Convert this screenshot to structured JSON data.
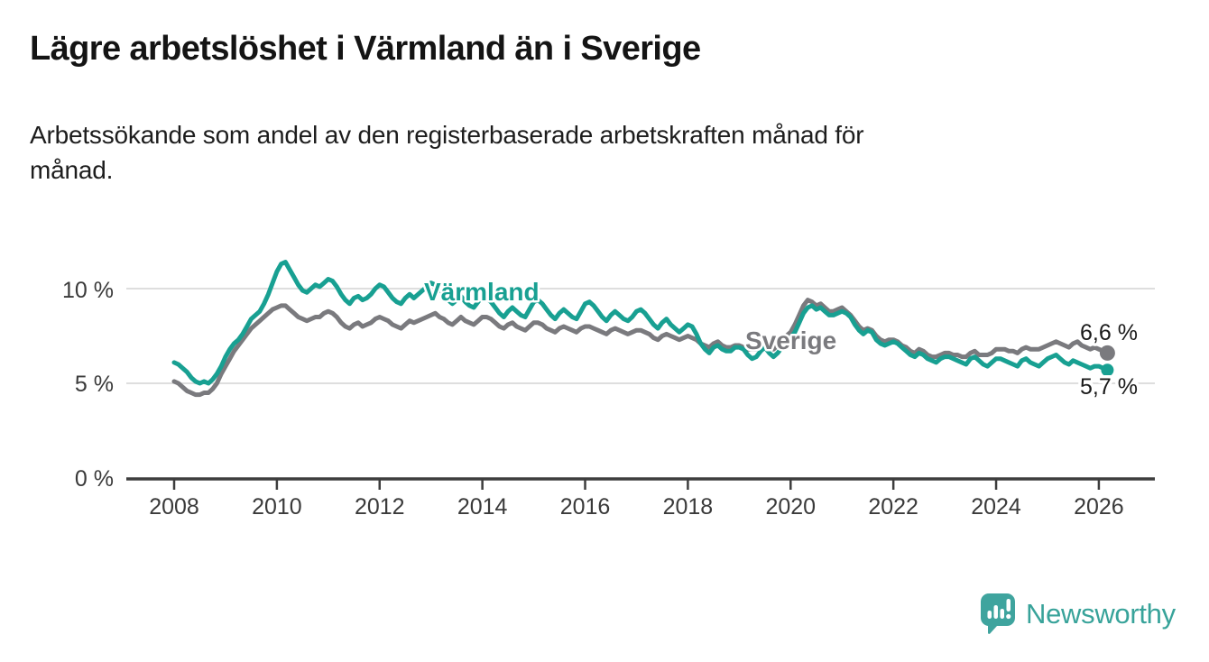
{
  "header": {
    "title": "Lägre arbetslöshet i Värmland än i Sverige",
    "subtitle": "Arbetssökande som andel av den registerbaserade arbetskraften månad för\nmånad."
  },
  "footer": {
    "brand": "Newsworthy",
    "logo_icon": "bar-chart-speech-bubble",
    "brand_color": "#38a39a"
  },
  "colors": {
    "varmland": "#18a092",
    "sverige": "#7a7a7e",
    "grid": "#dedede",
    "axis": "#3d3d3d",
    "tick_label": "#3a3a3a",
    "end_label": "#1a1a1a"
  },
  "chart_data": {
    "type": "line",
    "title": "Lägre arbetslöshet i Värmland än i Sverige",
    "subtitle": "Arbetssökande som andel av den registerbaserade arbetskraften månad för månad.",
    "unit": "%",
    "x_start_year": 2008,
    "x_start_month": 1,
    "x_interval": "monthly",
    "x_tick_years": [
      2008,
      2010,
      2012,
      2014,
      2016,
      2018,
      2020,
      2022,
      2024,
      2026
    ],
    "y_tick_labels": [
      "0 %",
      "5 %",
      "10 %"
    ],
    "y_tick_values": [
      0,
      5,
      10
    ],
    "ylim": [
      0,
      12.8
    ],
    "grid": "horizontal",
    "legend_position": "inline-labels",
    "series": [
      {
        "name": "Sverige",
        "color": "#7a7a7e",
        "end_label": "6,6 %",
        "end_value": 6.6,
        "values": [
          5.1,
          5.0,
          4.8,
          4.6,
          4.5,
          4.4,
          4.4,
          4.5,
          4.5,
          4.7,
          5.0,
          5.5,
          5.9,
          6.3,
          6.7,
          7.0,
          7.3,
          7.6,
          7.9,
          8.1,
          8.3,
          8.5,
          8.7,
          8.9,
          9.0,
          9.1,
          9.1,
          8.9,
          8.7,
          8.5,
          8.4,
          8.3,
          8.4,
          8.5,
          8.5,
          8.7,
          8.8,
          8.7,
          8.5,
          8.2,
          8.0,
          7.9,
          8.1,
          8.2,
          8.0,
          8.1,
          8.2,
          8.4,
          8.5,
          8.4,
          8.3,
          8.1,
          8.0,
          7.9,
          8.1,
          8.3,
          8.2,
          8.3,
          8.4,
          8.5,
          8.6,
          8.7,
          8.5,
          8.4,
          8.2,
          8.1,
          8.3,
          8.5,
          8.3,
          8.2,
          8.1,
          8.3,
          8.5,
          8.5,
          8.4,
          8.2,
          8.0,
          7.9,
          8.1,
          8.2,
          8.0,
          7.9,
          7.8,
          8.0,
          8.2,
          8.2,
          8.1,
          7.9,
          7.8,
          7.7,
          7.9,
          8.0,
          7.9,
          7.8,
          7.7,
          7.9,
          8.0,
          8.0,
          7.9,
          7.8,
          7.7,
          7.6,
          7.8,
          7.9,
          7.8,
          7.7,
          7.6,
          7.7,
          7.8,
          7.8,
          7.7,
          7.6,
          7.4,
          7.3,
          7.5,
          7.6,
          7.5,
          7.4,
          7.3,
          7.4,
          7.5,
          7.4,
          7.3,
          7.1,
          7.0,
          6.9,
          7.1,
          7.2,
          7.0,
          6.9,
          6.9,
          7.0,
          7.0,
          6.9,
          6.8,
          6.8,
          6.8,
          6.9,
          7.0,
          6.9,
          6.8,
          7.0,
          7.2,
          7.5,
          7.7,
          8.1,
          8.6,
          9.1,
          9.4,
          9.3,
          9.1,
          9.2,
          9.0,
          8.8,
          8.8,
          8.9,
          9.0,
          8.8,
          8.6,
          8.3,
          8.0,
          7.8,
          7.9,
          7.8,
          7.5,
          7.3,
          7.2,
          7.3,
          7.3,
          7.2,
          7.0,
          6.9,
          6.7,
          6.6,
          6.8,
          6.7,
          6.5,
          6.4,
          6.4,
          6.5,
          6.6,
          6.6,
          6.5,
          6.5,
          6.4,
          6.4,
          6.6,
          6.7,
          6.5,
          6.5,
          6.5,
          6.6,
          6.8,
          6.8,
          6.8,
          6.7,
          6.7,
          6.6,
          6.8,
          6.9,
          6.8,
          6.8,
          6.8,
          6.9,
          7.0,
          7.1,
          7.2,
          7.1,
          7.0,
          6.9,
          7.1,
          7.2,
          7.0,
          6.9,
          6.8,
          6.9,
          6.8,
          6.7,
          6.6
        ]
      },
      {
        "name": "Värmland",
        "color": "#18a092",
        "end_label": "5,7 %",
        "end_value": 5.7,
        "values": [
          6.1,
          6.0,
          5.8,
          5.6,
          5.3,
          5.1,
          5.0,
          5.1,
          5.0,
          5.2,
          5.5,
          5.9,
          6.4,
          6.8,
          7.1,
          7.3,
          7.6,
          8.0,
          8.4,
          8.6,
          8.8,
          9.2,
          9.7,
          10.3,
          10.9,
          11.3,
          11.4,
          11.0,
          10.6,
          10.2,
          9.9,
          9.8,
          10.0,
          10.2,
          10.1,
          10.3,
          10.5,
          10.4,
          10.1,
          9.7,
          9.4,
          9.2,
          9.5,
          9.6,
          9.4,
          9.5,
          9.7,
          10.0,
          10.2,
          10.1,
          9.8,
          9.5,
          9.3,
          9.2,
          9.5,
          9.7,
          9.5,
          9.7,
          9.9,
          10.1,
          10.3,
          10.2,
          10.0,
          9.7,
          9.4,
          9.2,
          9.4,
          9.6,
          9.3,
          9.1,
          9.0,
          9.3,
          9.6,
          9.5,
          9.3,
          9.0,
          8.7,
          8.5,
          8.8,
          9.0,
          8.8,
          8.6,
          8.5,
          8.9,
          9.3,
          9.4,
          9.2,
          8.9,
          8.6,
          8.4,
          8.7,
          8.9,
          8.7,
          8.5,
          8.4,
          8.8,
          9.2,
          9.3,
          9.1,
          8.8,
          8.5,
          8.3,
          8.6,
          8.8,
          8.6,
          8.4,
          8.3,
          8.5,
          8.8,
          8.9,
          8.7,
          8.4,
          8.1,
          7.9,
          8.2,
          8.4,
          8.1,
          7.9,
          7.7,
          7.9,
          8.1,
          8.0,
          7.6,
          7.1,
          6.8,
          6.6,
          6.9,
          7.0,
          6.8,
          6.7,
          6.7,
          6.9,
          6.9,
          6.8,
          6.5,
          6.3,
          6.4,
          6.7,
          6.9,
          6.6,
          6.4,
          6.6,
          6.9,
          7.3,
          7.4,
          7.7,
          8.2,
          8.7,
          9.0,
          9.1,
          8.9,
          9.0,
          8.8,
          8.6,
          8.6,
          8.7,
          8.8,
          8.7,
          8.5,
          8.1,
          7.8,
          7.6,
          7.8,
          7.7,
          7.3,
          7.1,
          7.0,
          7.1,
          7.2,
          7.1,
          6.9,
          6.7,
          6.5,
          6.4,
          6.6,
          6.5,
          6.3,
          6.2,
          6.1,
          6.3,
          6.4,
          6.4,
          6.3,
          6.2,
          6.1,
          6.0,
          6.3,
          6.4,
          6.2,
          6.0,
          5.9,
          6.1,
          6.3,
          6.3,
          6.2,
          6.1,
          6.0,
          5.9,
          6.2,
          6.3,
          6.1,
          6.0,
          5.9,
          6.1,
          6.3,
          6.4,
          6.5,
          6.3,
          6.1,
          6.0,
          6.2,
          6.1,
          6.0,
          5.9,
          5.8,
          5.9,
          5.9,
          5.8,
          5.7
        ]
      }
    ]
  }
}
